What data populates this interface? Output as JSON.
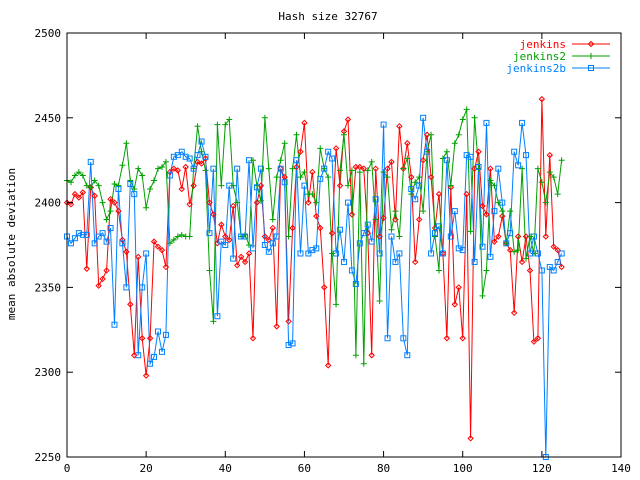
{
  "chart_data": {
    "type": "line",
    "title": "Hash size 32767",
    "xlabel": "",
    "ylabel": "mean absolute deviation",
    "xlim": [
      0,
      140
    ],
    "ylim": [
      2250,
      2500
    ],
    "xticks": [
      "0",
      "20",
      "40",
      "60",
      "80",
      "100",
      "120",
      "140"
    ],
    "yticks": [
      "2250",
      "2300",
      "2350",
      "2400",
      "2450",
      "2500"
    ],
    "grid": false,
    "legend_position": "top-right",
    "series": [
      {
        "name": "jenkins",
        "color": "#ff0000",
        "marker": "diamond",
        "x": [
          0,
          1,
          2,
          3,
          4,
          5,
          6,
          7,
          8,
          9,
          10,
          11,
          12,
          13,
          14,
          15,
          16,
          17,
          18,
          19,
          20,
          21,
          22,
          23,
          24,
          25,
          26,
          27,
          28,
          29,
          30,
          31,
          32,
          33,
          34,
          35,
          36,
          37,
          38,
          39,
          40,
          41,
          42,
          43,
          44,
          45,
          46,
          47,
          48,
          49,
          50,
          51,
          52,
          53,
          54,
          55,
          56,
          57,
          58,
          59,
          60,
          61,
          62,
          63,
          64,
          65,
          66,
          67,
          68,
          69,
          70,
          71,
          72,
          73,
          74,
          75,
          76,
          77,
          78,
          79,
          80,
          81,
          82,
          83,
          84,
          85,
          86,
          87,
          88,
          89,
          90,
          91,
          92,
          93,
          94,
          95,
          96,
          97,
          98,
          99,
          100,
          101,
          102,
          103,
          104,
          105,
          106,
          107,
          108,
          109,
          110,
          111,
          112,
          113,
          114,
          115,
          116,
          117,
          118,
          119,
          120,
          121,
          122,
          123,
          124,
          125
        ],
        "y": [
          2400,
          2399,
          2405,
          2403,
          2406,
          2361,
          2409,
          2404,
          2351,
          2355,
          2360,
          2402,
          2400,
          2395,
          2378,
          2371,
          2340,
          2310,
          2368,
          2320,
          2298,
          2320,
          2377,
          2374,
          2372,
          2362,
          2418,
          2420,
          2419,
          2408,
          2421,
          2399,
          2410,
          2424,
          2423,
          2426,
          2400,
          2393,
          2376,
          2387,
          2380,
          2378,
          2398,
          2363,
          2368,
          2365,
          2370,
          2320,
          2400,
          2410,
          2380,
          2378,
          2385,
          2327,
          2420,
          2415,
          2330,
          2385,
          2421,
          2430,
          2447,
          2400,
          2418,
          2392,
          2385,
          2350,
          2304,
          2382,
          2432,
          2410,
          2442,
          2449,
          2393,
          2421,
          2421,
          2420,
          2382,
          2310,
          2420,
          2380,
          2391,
          2420,
          2424,
          2390,
          2445,
          2420,
          2435,
          2415,
          2365,
          2390,
          2425,
          2440,
          2415,
          2385,
          2405,
          2370,
          2320,
          2409,
          2340,
          2350,
          2320,
          2405,
          2261,
          2420,
          2430,
          2398,
          2393,
          2420,
          2377,
          2380,
          2392,
          2376,
          2372,
          2335,
          2380,
          2365,
          2380,
          2360,
          2318,
          2320,
          2461,
          2380,
          2428,
          2374,
          2372,
          2362
        ]
      },
      {
        "name": "jenkins2",
        "color": "#00a000",
        "marker": "plus",
        "x": [
          0,
          1,
          2,
          3,
          4,
          5,
          6,
          7,
          8,
          9,
          10,
          11,
          12,
          13,
          14,
          15,
          16,
          17,
          18,
          19,
          20,
          21,
          22,
          23,
          24,
          25,
          26,
          27,
          28,
          29,
          30,
          31,
          32,
          33,
          34,
          35,
          36,
          37,
          38,
          39,
          40,
          41,
          42,
          43,
          44,
          45,
          46,
          47,
          48,
          49,
          50,
          51,
          52,
          53,
          54,
          55,
          56,
          57,
          58,
          59,
          60,
          61,
          62,
          63,
          64,
          65,
          66,
          67,
          68,
          69,
          70,
          71,
          72,
          73,
          74,
          75,
          76,
          77,
          78,
          79,
          80,
          81,
          82,
          83,
          84,
          85,
          86,
          87,
          88,
          89,
          90,
          91,
          92,
          93,
          94,
          95,
          96,
          97,
          98,
          99,
          100,
          101,
          102,
          103,
          104,
          105,
          106,
          107,
          108,
          109,
          110,
          111,
          112,
          113,
          114,
          115,
          116,
          117,
          118,
          119,
          120,
          121,
          122,
          123,
          124,
          125
        ],
        "y": [
          2413,
          2412,
          2416,
          2418,
          2416,
          2410,
          2409,
          2413,
          2410,
          2400,
          2390,
          2395,
          2411,
          2410,
          2422,
          2435,
          2413,
          2408,
          2420,
          2416,
          2397,
          2408,
          2413,
          2420,
          2421,
          2424,
          2376,
          2378,
          2380,
          2381,
          2380,
          2380,
          2420,
          2445,
          2430,
          2419,
          2360,
          2330,
          2446,
          2410,
          2446,
          2449,
          2410,
          2400,
          2380,
          2381,
          2375,
          2425,
          2410,
          2401,
          2450,
          2420,
          2390,
          2415,
          2425,
          2435,
          2380,
          2420,
          2440,
          2415,
          2418,
          2405,
          2405,
          2400,
          2432,
          2420,
          2415,
          2370,
          2340,
          2419,
          2440,
          2410,
          2419,
          2310,
          2418,
          2305,
          2419,
          2424,
          2390,
          2342,
          2418,
          2415,
          2384,
          2395,
          2380,
          2420,
          2426,
          2405,
          2412,
          2415,
          2395,
          2430,
          2440,
          2380,
          2360,
          2426,
          2430,
          2410,
          2435,
          2440,
          2449,
          2455,
          2383,
          2450,
          2420,
          2345,
          2360,
          2413,
          2410,
          2400,
          2395,
          2376,
          2395,
          2371,
          2372,
          2420,
          2367,
          2380,
          2370,
          2420,
          2412,
          2400,
          2418,
          2415,
          2405,
          2425
        ]
      },
      {
        "name": "jenkins2b",
        "color": "#0080ff",
        "marker": "square",
        "x": [
          0,
          1,
          2,
          3,
          4,
          5,
          6,
          7,
          8,
          9,
          10,
          11,
          12,
          13,
          14,
          15,
          16,
          17,
          18,
          19,
          20,
          21,
          22,
          23,
          24,
          25,
          26,
          27,
          28,
          29,
          30,
          31,
          32,
          33,
          34,
          35,
          36,
          37,
          38,
          39,
          40,
          41,
          42,
          43,
          44,
          45,
          46,
          47,
          48,
          49,
          50,
          51,
          52,
          53,
          54,
          55,
          56,
          57,
          58,
          59,
          60,
          61,
          62,
          63,
          64,
          65,
          66,
          67,
          68,
          69,
          70,
          71,
          72,
          73,
          74,
          75,
          76,
          77,
          78,
          79,
          80,
          81,
          82,
          83,
          84,
          85,
          86,
          87,
          88,
          89,
          90,
          91,
          92,
          93,
          94,
          95,
          96,
          97,
          98,
          99,
          100,
          101,
          102,
          103,
          104,
          105,
          106,
          107,
          108,
          109,
          110,
          111,
          112,
          113,
          114,
          115,
          116,
          117,
          118,
          119,
          120,
          121,
          122,
          123,
          124,
          125
        ],
        "y": [
          2380,
          2376,
          2379,
          2382,
          2381,
          2381,
          2424,
          2376,
          2380,
          2382,
          2377,
          2385,
          2328,
          2408,
          2376,
          2350,
          2411,
          2405,
          2310,
          2350,
          2370,
          2305,
          2309,
          2324,
          2312,
          2322,
          2416,
          2427,
          2428,
          2430,
          2427,
          2426,
          2420,
          2428,
          2436,
          2427,
          2382,
          2420,
          2333,
          2377,
          2375,
          2410,
          2367,
          2420,
          2380,
          2380,
          2425,
          2373,
          2409,
          2420,
          2375,
          2371,
          2376,
          2380,
          2420,
          2412,
          2316,
          2317,
          2425,
          2370,
          2410,
          2370,
          2372,
          2373,
          2414,
          2420,
          2430,
          2426,
          2370,
          2384,
          2365,
          2400,
          2360,
          2352,
          2376,
          2382,
          2387,
          2377,
          2402,
          2370,
          2446,
          2320,
          2380,
          2365,
          2370,
          2320,
          2310,
          2408,
          2402,
          2410,
          2450,
          2430,
          2370,
          2382,
          2386,
          2370,
          2425,
          2380,
          2395,
          2373,
          2372,
          2428,
          2427,
          2365,
          2421,
          2374,
          2447,
          2368,
          2395,
          2420,
          2400,
          2376,
          2382,
          2430,
          2422,
          2447,
          2428,
          2370,
          2380,
          2370,
          2360,
          2250,
          2362,
          2360,
          2365,
          2370
        ]
      }
    ]
  }
}
